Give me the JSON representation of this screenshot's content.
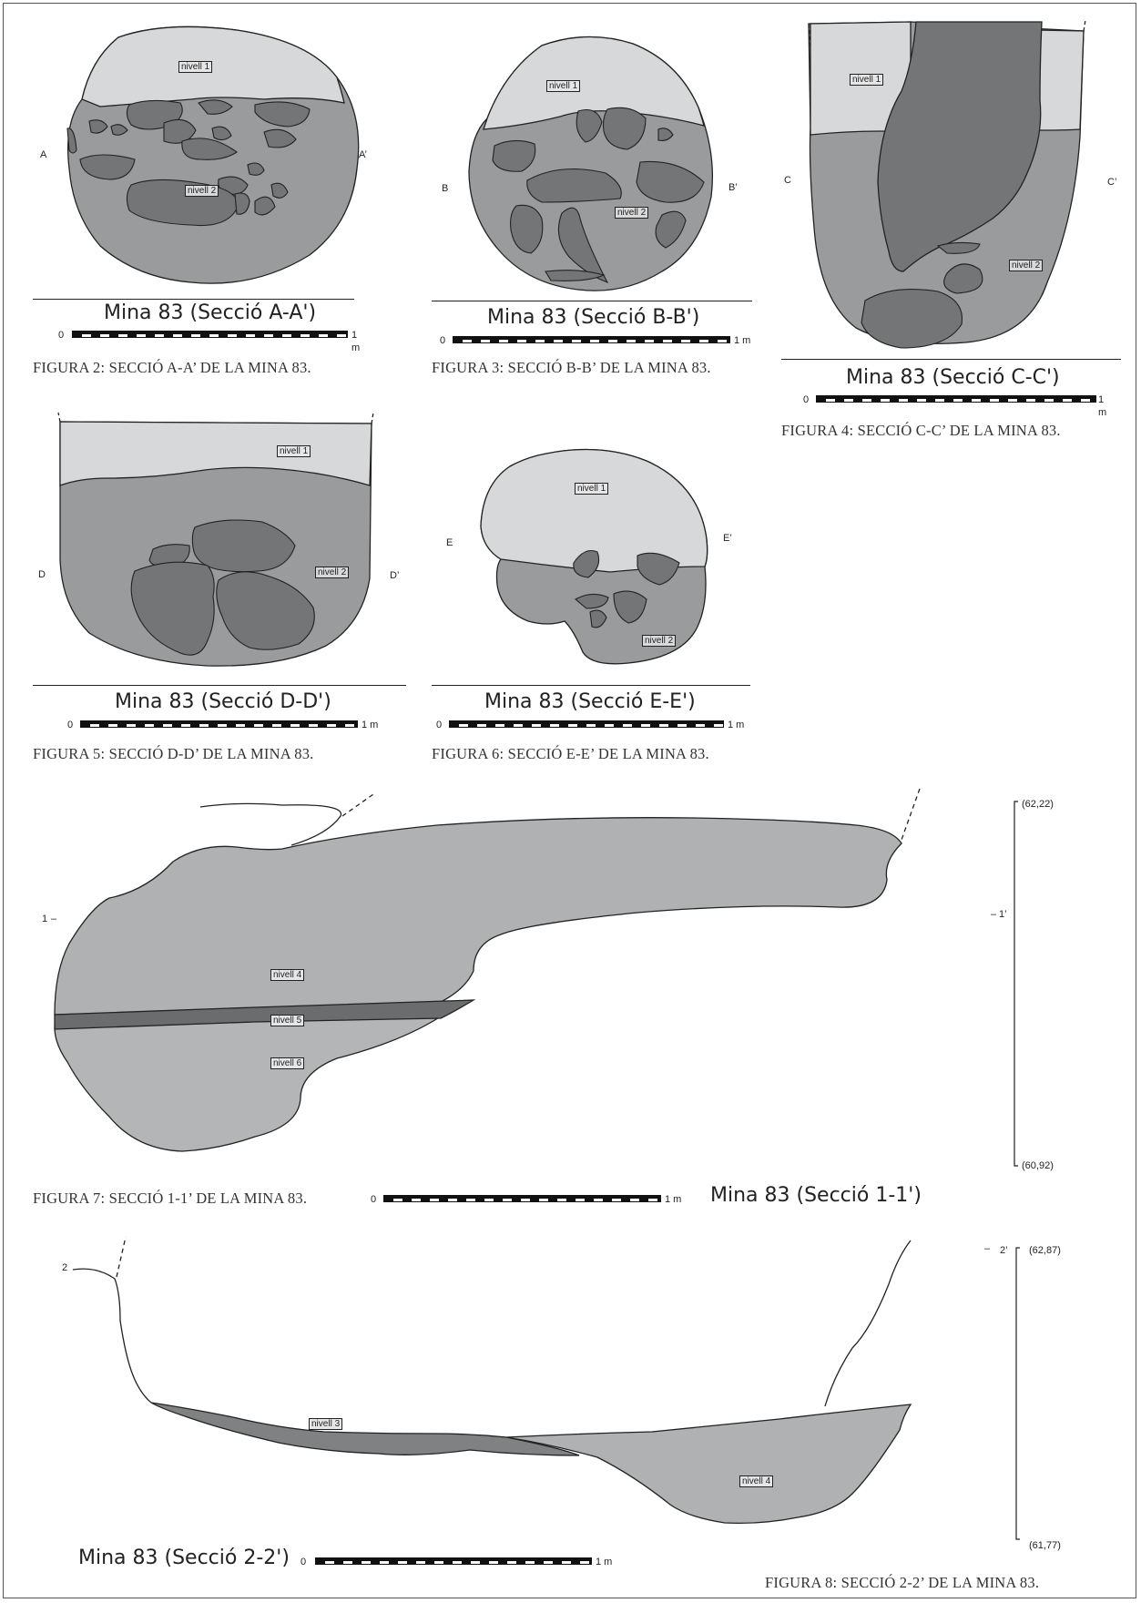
{
  "colors": {
    "level1": "#d7d8d9",
    "level2": "#9a9b9d",
    "stone": "#747577",
    "level3": "#808183",
    "level4": "#b0b1b3",
    "level5": "#6b6c6e",
    "level6": "#b4b5b7"
  },
  "scale": {
    "start": "0",
    "end": "1 m"
  },
  "figures": {
    "a": {
      "title": "Mina 83 (Secció A-A')",
      "caption": "FIGURA 2: SECCIÓ A-A’ DE LA MINA 83.",
      "left_mark": "A",
      "right_mark": "A’",
      "levels": [
        "nivell 1",
        "nivell 2"
      ]
    },
    "b": {
      "title": "Mina 83 (Secció B-B')",
      "caption": "FIGURA 3: SECCIÓ B-B’ DE LA MINA 83.",
      "left_mark": "B",
      "right_mark": "B’",
      "levels": [
        "nivell 1",
        "nivell 2"
      ]
    },
    "c": {
      "title": "Mina 83 (Secció C-C')",
      "caption": "FIGURA 4: SECCIÓ C-C’ DE LA MINA 83.",
      "left_mark": "C",
      "right_mark": "C’",
      "levels": [
        "nivell 1",
        "nivell 2"
      ]
    },
    "d": {
      "title": "Mina 83 (Secció D-D')",
      "caption": "FIGURA 5: SECCIÓ D-D’ DE LA MINA 83.",
      "left_mark": "D",
      "right_mark": "D’",
      "levels": [
        "nivell 1",
        "nivell 2"
      ]
    },
    "e": {
      "title": "Mina 83 (Secció E-E')",
      "caption": "FIGURA 6: SECCIÓ E-E’ DE LA MINA 83.",
      "left_mark": "E",
      "right_mark": "E’",
      "levels": [
        "nivell 1",
        "nivell 2"
      ]
    },
    "s1": {
      "title": "Mina 83 (Secció 1-1')",
      "caption": "FIGURA 7: SECCIÓ 1-1’ DE LA MINA 83.",
      "left_mark": "1",
      "right_mark": "1’",
      "elev_top": "(62,22)",
      "elev_bottom": "(60,92)",
      "levels": [
        "nivell 4",
        "nivell 5",
        "nivell 6"
      ]
    },
    "s2": {
      "title": "Mina 83 (Secció 2-2')",
      "caption": "FIGURA 8: SECCIÓ 2-2’ DE LA MINA 83.",
      "left_mark": "2",
      "right_mark": "2’",
      "elev_top": "(62,87)",
      "elev_bottom": "(61,77)",
      "levels": [
        "nivell 3",
        "nivell 4"
      ]
    }
  }
}
